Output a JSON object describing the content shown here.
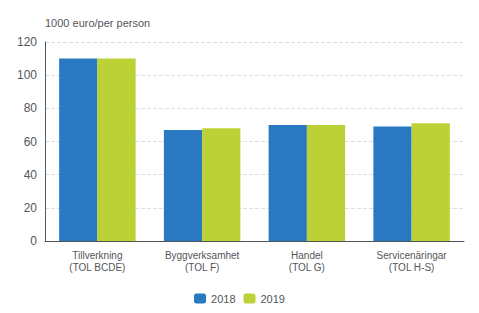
{
  "chart_data": {
    "type": "bar",
    "ylabel": "1000 euro/per person",
    "categories": [
      "Tillverkning\n(TOL BCDE)",
      "Byggverksamhet\n(TOL F)",
      "Handel\n(TOL G)",
      "Servicenäringar\n(TOL H-S)"
    ],
    "series": [
      {
        "name": "2018",
        "color": "#2878c2",
        "values": [
          110,
          67,
          70,
          69
        ]
      },
      {
        "name": "2019",
        "color": "#bcd135",
        "values": [
          110,
          68,
          70,
          71
        ]
      }
    ],
    "ylim": [
      0,
      120
    ],
    "yticks": [
      0,
      20,
      40,
      60,
      80,
      100,
      120
    ],
    "grid": true,
    "legend": "bottom"
  }
}
